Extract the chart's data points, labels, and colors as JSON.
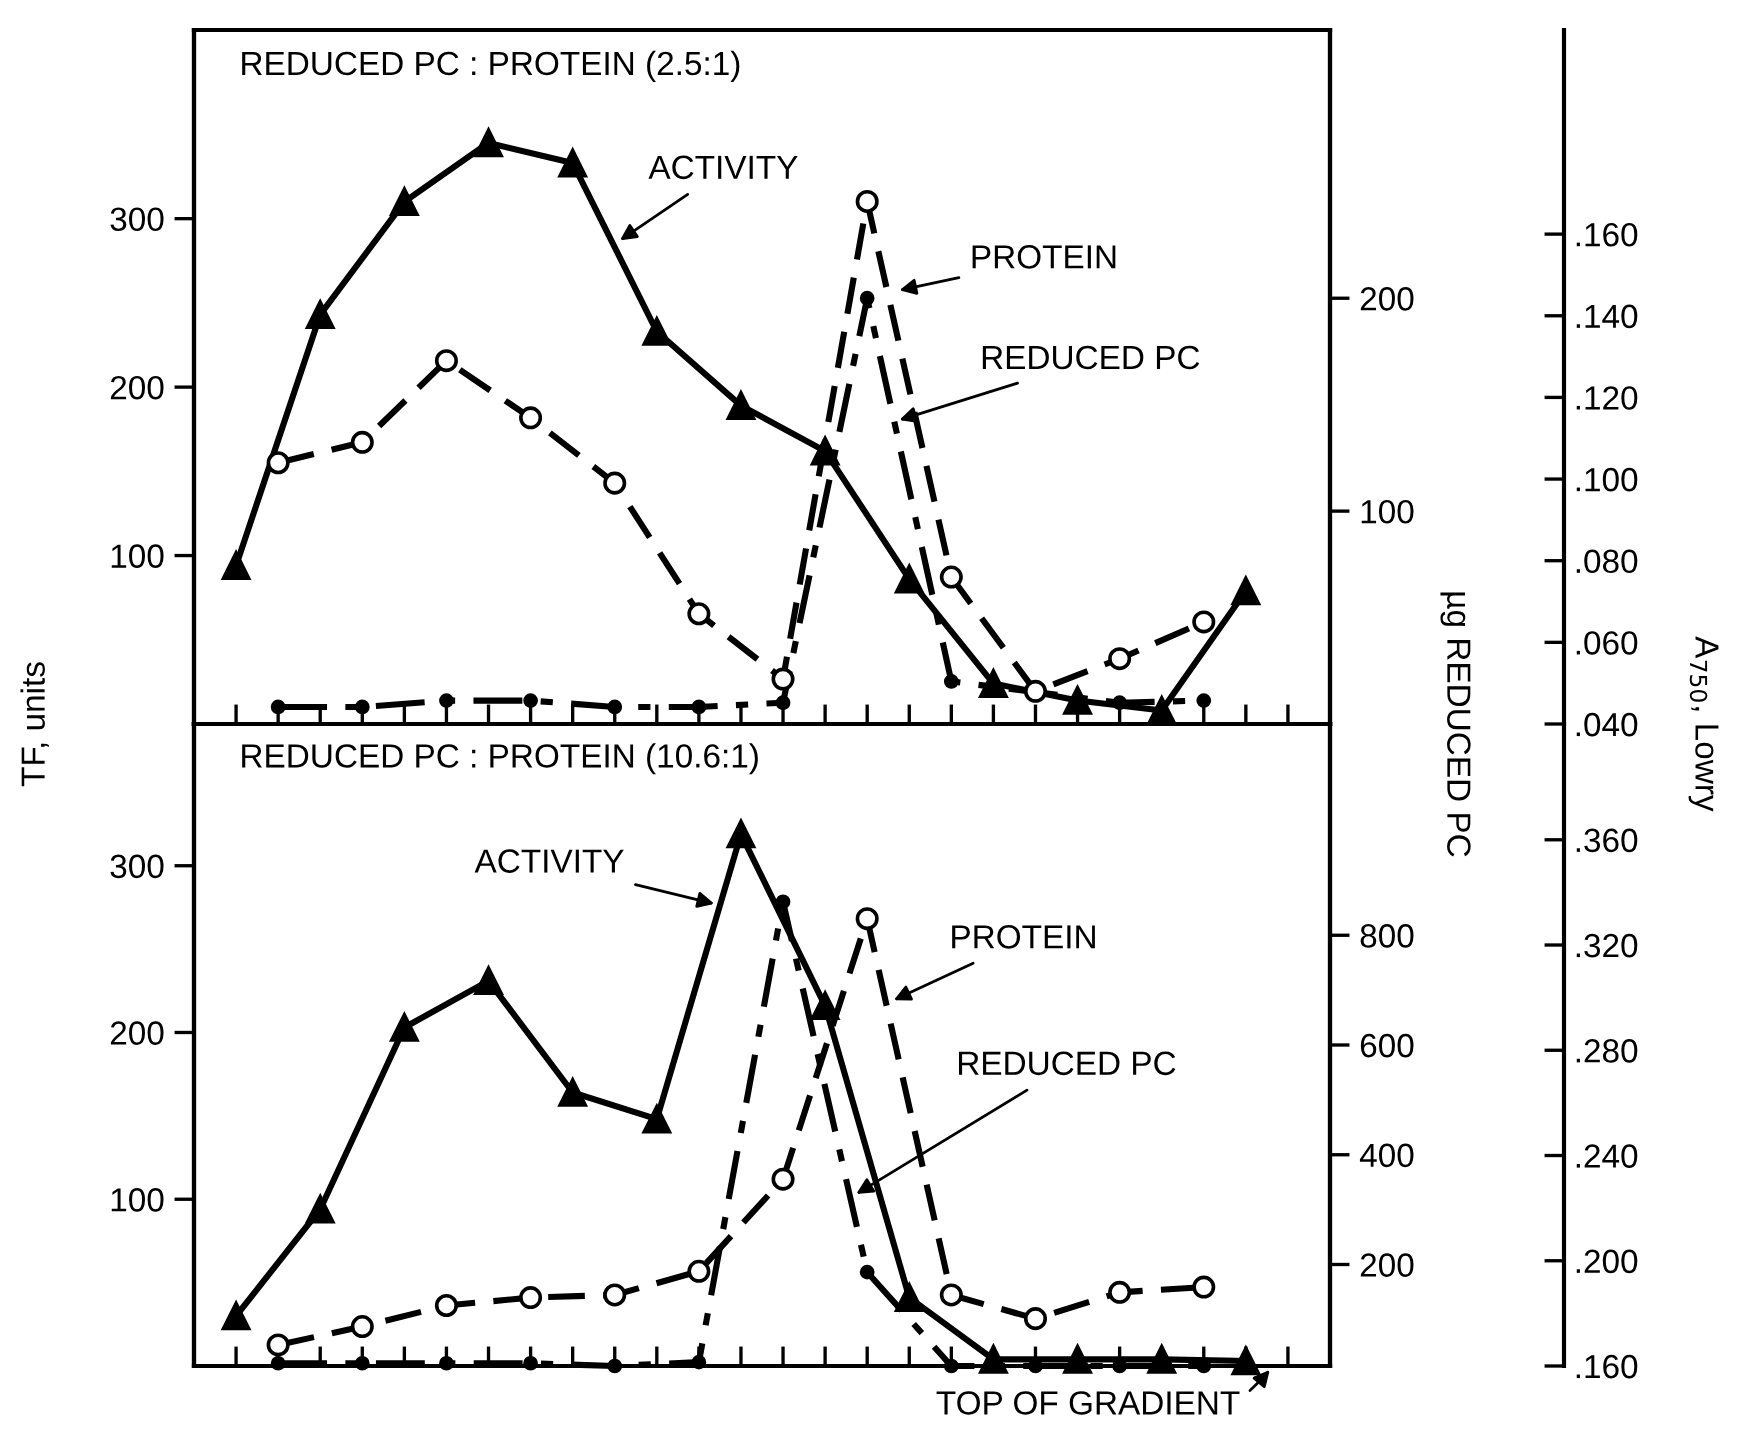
{
  "chart_data": [
    {
      "type": "line",
      "title": "REDUCED PC : PROTEIN (2.5:1)",
      "ylabel": "TF, units",
      "y2label": "µg REDUCED PC",
      "y3label": "A$_{750}$, Lowry",
      "categories": [
        null,
        null,
        null,
        null,
        null,
        null,
        null,
        null,
        null,
        null,
        null,
        null,
        null,
        null,
        null,
        null,
        null,
        null,
        null,
        null,
        null,
        null,
        null,
        null,
        null,
        null
      ],
      "ylim": [
        0,
        412
      ],
      "yticks": [
        100,
        200,
        300
      ],
      "y2lim": [
        0,
        326
      ],
      "y2ticks": [
        100,
        200
      ],
      "y3lim": [
        0.04,
        0.21
      ],
      "y3ticks": [
        {
          "value": 0.04,
          "label": ".040"
        },
        {
          "value": 0.06,
          "label": ".060"
        },
        {
          "value": 0.08,
          "label": ".080"
        },
        {
          "value": 0.1,
          "label": ".100"
        },
        {
          "value": 0.12,
          "label": ".120"
        },
        {
          "value": 0.14,
          "label": ".140"
        },
        {
          "value": 0.16,
          "label": ".160"
        }
      ],
      "tick_labels": "y",
      "grid": false,
      "legend": false,
      "series": [
        {
          "axis": "y",
          "color": "#000000",
          "marker": "triangle",
          "line_style": "solid",
          "values": [
            94,
            null,
            243,
            null,
            310,
            null,
            345,
            null,
            333,
            null,
            233,
            null,
            189,
            null,
            162,
            null,
            86,
            null,
            24,
            null,
            14,
            null,
            8,
            null,
            79,
            null
          ]
        },
        {
          "axis": "y3",
          "color": "#000000",
          "marker": "circle",
          "line_style": "dashed",
          "values": [
            null,
            0.104,
            null,
            0.109,
            null,
            0.129,
            null,
            0.115,
            null,
            0.099,
            null,
            0.067,
            null,
            0.051,
            null,
            0.168,
            null,
            0.076,
            null,
            0.048,
            null,
            0.056,
            null,
            0.065,
            null,
            null
          ]
        },
        {
          "axis": "y2",
          "color": "#000000",
          "marker": "point",
          "line_style": "dashdot",
          "values": [
            null,
            8,
            null,
            8,
            null,
            11,
            null,
            11,
            null,
            8,
            null,
            8,
            null,
            10,
            null,
            200,
            null,
            20,
            null,
            null,
            null,
            10,
            null,
            11,
            null,
            null
          ]
        }
      ],
      "annotations": [
        "ACTIVITY",
        "PROTEIN",
        "REDUCED PC"
      ]
    },
    {
      "type": "line",
      "title": "REDUCED PC : PROTEIN (10.6:1)",
      "categories": [
        null,
        null,
        null,
        null,
        null,
        null,
        null,
        null,
        null,
        null,
        null,
        null,
        null,
        null,
        null,
        null,
        null,
        null,
        null,
        null,
        null,
        null,
        null,
        null,
        null,
        null
      ],
      "ylim": [
        0,
        385
      ],
      "yticks": [
        100,
        200,
        300
      ],
      "y2lim": [
        15,
        1185
      ],
      "y2ticks": [
        200,
        400,
        600,
        800
      ],
      "y3lim": [
        0.16,
        0.404
      ],
      "y3ticks": [
        {
          "value": 0.16,
          "label": ".160"
        },
        {
          "value": 0.2,
          "label": ".200"
        },
        {
          "value": 0.24,
          "label": ".240"
        },
        {
          "value": 0.28,
          "label": ".280"
        },
        {
          "value": 0.32,
          "label": ".320"
        },
        {
          "value": 0.36,
          "label": ".360"
        }
      ],
      "tick_labels": "y",
      "grid": false,
      "legend": false,
      "series": [
        {
          "axis": "y",
          "color": "#000000",
          "marker": "triangle",
          "line_style": "solid",
          "values": [
            30,
            null,
            94,
            null,
            203,
            null,
            231,
            null,
            164,
            null,
            148,
            null,
            319,
            null,
            216,
            null,
            41,
            null,
            4,
            null,
            4,
            null,
            4,
            null,
            3,
            null
          ]
        },
        {
          "axis": "y3",
          "color": "#000000",
          "marker": "circle",
          "line_style": "dashed",
          "values": [
            null,
            0.168,
            null,
            0.175,
            null,
            0.183,
            null,
            0.186,
            null,
            0.187,
            null,
            0.196,
            null,
            0.231,
            null,
            0.33,
            null,
            0.187,
            null,
            0.178,
            null,
            0.188,
            null,
            0.19,
            null,
            null
          ]
        },
        {
          "axis": "y2",
          "color": "#000000",
          "marker": "point",
          "line_style": "dashdot",
          "values": [
            null,
            20,
            null,
            20,
            null,
            20,
            null,
            20,
            null,
            15,
            null,
            22,
            null,
            861,
            null,
            186,
            null,
            15,
            null,
            15,
            null,
            15,
            null,
            15,
            null,
            null
          ]
        }
      ],
      "annotations": [
        "ACTIVITY",
        "PROTEIN",
        "REDUCED PC",
        "TOP OF GRADIENT"
      ]
    }
  ]
}
